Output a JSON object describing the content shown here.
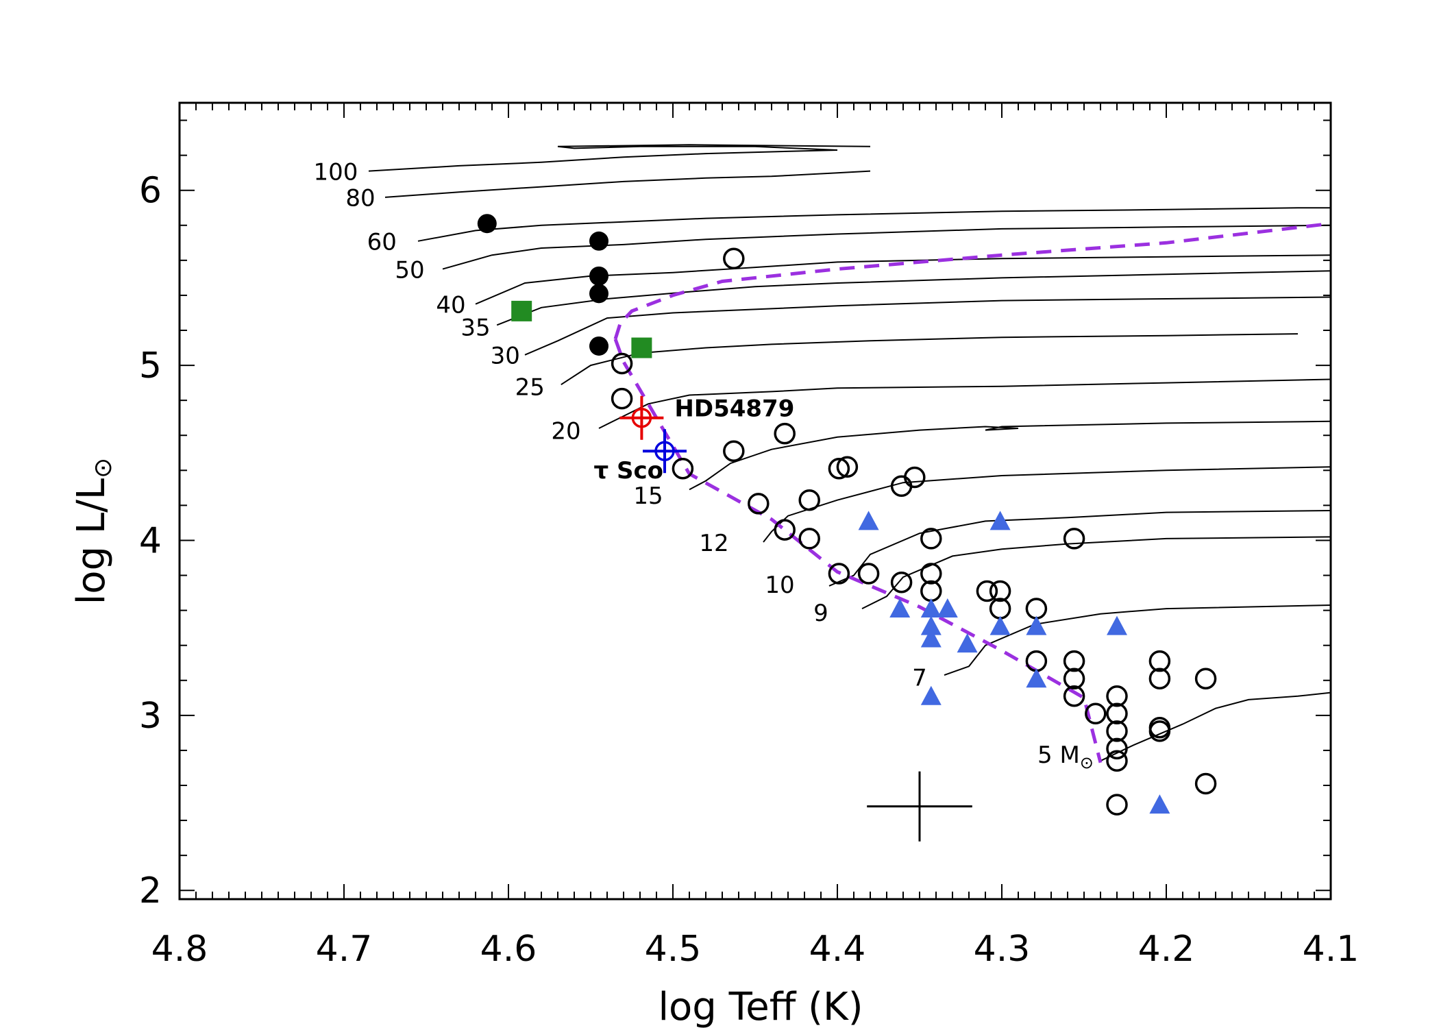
{
  "chart_data": {
    "type": "scatter",
    "title": "",
    "xlabel": "log Teff (K)",
    "ylabel_parts": {
      "main": "log L/L",
      "sub": "⊙"
    },
    "xlim": [
      4.8,
      4.1
    ],
    "ylim": [
      1.95,
      6.5
    ],
    "x_ticks": [
      {
        "v": 4.8,
        "label": "4.8"
      },
      {
        "v": 4.7,
        "label": "4.7"
      },
      {
        "v": 4.6,
        "label": "4.6"
      },
      {
        "v": 4.5,
        "label": "4.5"
      },
      {
        "v": 4.4,
        "label": "4.4"
      },
      {
        "v": 4.3,
        "label": "4.3"
      },
      {
        "v": 4.2,
        "label": "4.2"
      },
      {
        "v": 4.1,
        "label": "4.1"
      }
    ],
    "y_ticks": [
      {
        "v": 2,
        "label": "2"
      },
      {
        "v": 3,
        "label": "3"
      },
      {
        "v": 4,
        "label": "4"
      },
      {
        "v": 5,
        "label": "5"
      },
      {
        "v": 6,
        "label": "6"
      }
    ],
    "tracks": [
      {
        "mass": "100",
        "label_pos": [
          4.705,
          6.06
        ],
        "points": [
          [
            4.685,
            6.11
          ],
          [
            4.63,
            6.14
          ],
          [
            4.58,
            6.16
          ],
          [
            4.53,
            6.19
          ],
          [
            4.48,
            6.21
          ],
          [
            4.44,
            6.22
          ],
          [
            4.4,
            6.23
          ],
          [
            4.45,
            6.25
          ],
          [
            4.52,
            6.25
          ],
          [
            4.56,
            6.24
          ],
          [
            4.57,
            6.25
          ],
          [
            4.49,
            6.26
          ],
          [
            4.38,
            6.25
          ]
        ]
      },
      {
        "mass": "80",
        "label_pos": [
          4.69,
          5.91
        ],
        "points": [
          [
            4.675,
            5.96
          ],
          [
            4.63,
            5.99
          ],
          [
            4.58,
            6.02
          ],
          [
            4.53,
            6.05
          ],
          [
            4.48,
            6.07
          ],
          [
            4.44,
            6.08
          ],
          [
            4.4,
            6.1
          ],
          [
            4.38,
            6.11
          ]
        ]
      },
      {
        "mass": "60",
        "label_pos": [
          4.677,
          5.66
        ],
        "points": [
          [
            4.655,
            5.71
          ],
          [
            4.62,
            5.77
          ],
          [
            4.58,
            5.8
          ],
          [
            4.53,
            5.82
          ],
          [
            4.48,
            5.84
          ],
          [
            4.4,
            5.86
          ],
          [
            4.3,
            5.88
          ],
          [
            4.2,
            5.89
          ],
          [
            4.12,
            5.9
          ],
          [
            4.1,
            5.9
          ]
        ]
      },
      {
        "mass": "50",
        "label_pos": [
          4.66,
          5.5
        ],
        "points": [
          [
            4.64,
            5.55
          ],
          [
            4.61,
            5.63
          ],
          [
            4.58,
            5.67
          ],
          [
            4.53,
            5.69
          ],
          [
            4.48,
            5.72
          ],
          [
            4.4,
            5.75
          ],
          [
            4.3,
            5.78
          ],
          [
            4.2,
            5.79
          ],
          [
            4.1,
            5.8
          ]
        ]
      },
      {
        "mass": "40",
        "label_pos": [
          4.635,
          5.3
        ],
        "points": [
          [
            4.62,
            5.35
          ],
          [
            4.59,
            5.47
          ],
          [
            4.55,
            5.51
          ],
          [
            4.5,
            5.53
          ],
          [
            4.45,
            5.56
          ],
          [
            4.4,
            5.59
          ],
          [
            4.3,
            5.61
          ],
          [
            4.2,
            5.62
          ],
          [
            4.1,
            5.63
          ]
        ]
      },
      {
        "mass": "35",
        "label_pos": [
          4.62,
          5.17
        ],
        "points": [
          [
            4.607,
            5.23
          ],
          [
            4.58,
            5.33
          ],
          [
            4.54,
            5.38
          ],
          [
            4.49,
            5.42
          ],
          [
            4.45,
            5.45
          ],
          [
            4.4,
            5.47
          ],
          [
            4.3,
            5.5
          ],
          [
            4.2,
            5.52
          ],
          [
            4.1,
            5.54
          ]
        ]
      },
      {
        "mass": "30",
        "label_pos": [
          4.602,
          5.01
        ],
        "points": [
          [
            4.59,
            5.06
          ],
          [
            4.57,
            5.14
          ],
          [
            4.54,
            5.27
          ],
          [
            4.5,
            5.3
          ],
          [
            4.45,
            5.32
          ],
          [
            4.4,
            5.34
          ],
          [
            4.3,
            5.37
          ],
          [
            4.2,
            5.38
          ],
          [
            4.1,
            5.39
          ]
        ]
      },
      {
        "mass": "25",
        "label_pos": [
          4.587,
          4.83
        ],
        "points": [
          [
            4.568,
            4.89
          ],
          [
            4.55,
            5.0
          ],
          [
            4.52,
            5.07
          ],
          [
            4.48,
            5.1
          ],
          [
            4.44,
            5.12
          ],
          [
            4.38,
            5.14
          ],
          [
            4.3,
            5.16
          ],
          [
            4.2,
            5.17
          ],
          [
            4.12,
            5.18
          ]
        ]
      },
      {
        "mass": "20",
        "label_pos": [
          4.565,
          4.58
        ],
        "points": [
          [
            4.545,
            4.64
          ],
          [
            4.53,
            4.71
          ],
          [
            4.515,
            4.78
          ],
          [
            4.49,
            4.83
          ],
          [
            4.44,
            4.85
          ],
          [
            4.4,
            4.87
          ],
          [
            4.3,
            4.88
          ],
          [
            4.2,
            4.9
          ],
          [
            4.1,
            4.92
          ]
        ]
      },
      {
        "mass": "15",
        "label_pos": [
          4.515,
          4.21
        ],
        "points": [
          [
            4.49,
            4.29
          ],
          [
            4.48,
            4.34
          ],
          [
            4.465,
            4.44
          ],
          [
            4.44,
            4.52
          ],
          [
            4.4,
            4.59
          ],
          [
            4.35,
            4.63
          ],
          [
            4.31,
            4.65
          ],
          [
            4.29,
            4.64
          ],
          [
            4.31,
            4.63
          ],
          [
            4.3,
            4.65
          ],
          [
            4.2,
            4.67
          ],
          [
            4.1,
            4.68
          ]
        ]
      },
      {
        "mass": "12",
        "label_pos": [
          4.475,
          3.94
        ],
        "points": [
          [
            4.445,
            3.99
          ],
          [
            4.44,
            4.05
          ],
          [
            4.43,
            4.14
          ],
          [
            4.4,
            4.23
          ],
          [
            4.36,
            4.33
          ],
          [
            4.3,
            4.37
          ],
          [
            4.2,
            4.4
          ],
          [
            4.1,
            4.42
          ]
        ]
      },
      {
        "mass": "10",
        "label_pos": [
          4.435,
          3.7
        ],
        "points": [
          [
            4.405,
            3.74
          ],
          [
            4.39,
            3.8
          ],
          [
            4.38,
            3.92
          ],
          [
            4.35,
            4.04
          ],
          [
            4.31,
            4.11
          ],
          [
            4.26,
            4.13
          ],
          [
            4.2,
            4.16
          ],
          [
            4.1,
            4.17
          ]
        ]
      },
      {
        "mass": "9",
        "label_pos": [
          4.41,
          3.54
        ],
        "points": [
          [
            4.385,
            3.61
          ],
          [
            4.37,
            3.68
          ],
          [
            4.36,
            3.79
          ],
          [
            4.33,
            3.91
          ],
          [
            4.3,
            3.95
          ],
          [
            4.26,
            3.98
          ],
          [
            4.2,
            4.01
          ],
          [
            4.1,
            4.02
          ]
        ]
      },
      {
        "mass": "7",
        "label_pos": [
          4.35,
          3.17
        ],
        "points": [
          [
            4.335,
            3.23
          ],
          [
            4.32,
            3.28
          ],
          [
            4.31,
            3.4
          ],
          [
            4.28,
            3.52
          ],
          [
            4.24,
            3.58
          ],
          [
            4.2,
            3.61
          ],
          [
            4.1,
            3.63
          ]
        ]
      },
      {
        "mass": "5",
        "label_pos": [
          4.27,
          2.73
        ],
        "points": [
          [
            4.24,
            2.74
          ],
          [
            4.22,
            2.83
          ],
          [
            4.19,
            2.95
          ],
          [
            4.17,
            3.04
          ],
          [
            4.15,
            3.09
          ],
          [
            4.12,
            3.11
          ],
          [
            4.1,
            3.13
          ]
        ]
      }
    ],
    "track_label_suffix": "M",
    "track_label_suffix_sub": "⊙",
    "zams_line": [
      [
        4.535,
        5.15
      ],
      [
        4.532,
        5.24
      ],
      [
        4.525,
        5.31
      ],
      [
        4.5,
        5.4
      ],
      [
        4.47,
        5.48
      ],
      [
        4.4,
        5.55
      ],
      [
        4.3,
        5.63
      ],
      [
        4.2,
        5.7
      ],
      [
        4.1,
        5.81
      ]
    ],
    "tams_line": [
      [
        4.535,
        5.15
      ],
      [
        4.53,
        5.02
      ],
      [
        4.49,
        4.38
      ],
      [
        4.44,
        4.12
      ],
      [
        4.4,
        3.82
      ],
      [
        4.35,
        3.62
      ],
      [
        4.3,
        3.37
      ],
      [
        4.25,
        3.1
      ],
      [
        4.24,
        2.73
      ]
    ],
    "filled_circles": [
      [
        4.613,
        5.81
      ],
      [
        4.545,
        5.71
      ],
      [
        4.545,
        5.51
      ],
      [
        4.545,
        5.41
      ],
      [
        4.545,
        5.11
      ]
    ],
    "squares": [
      [
        4.592,
        5.31
      ],
      [
        4.519,
        5.1
      ]
    ],
    "open_circles": [
      [
        4.463,
        5.61
      ],
      [
        4.531,
        5.01
      ],
      [
        4.531,
        4.81
      ],
      [
        4.494,
        4.41
      ],
      [
        4.463,
        4.51
      ],
      [
        4.432,
        4.61
      ],
      [
        4.399,
        4.41
      ],
      [
        4.394,
        4.42
      ],
      [
        4.361,
        4.31
      ],
      [
        4.353,
        4.36
      ],
      [
        4.448,
        4.21
      ],
      [
        4.417,
        4.23
      ],
      [
        4.432,
        4.06
      ],
      [
        4.417,
        4.01
      ],
      [
        4.343,
        4.01
      ],
      [
        4.256,
        4.01
      ],
      [
        4.399,
        3.81
      ],
      [
        4.381,
        3.81
      ],
      [
        4.361,
        3.76
      ],
      [
        4.343,
        3.81
      ],
      [
        4.343,
        3.71
      ],
      [
        4.309,
        3.71
      ],
      [
        4.301,
        3.71
      ],
      [
        4.301,
        3.61
      ],
      [
        4.279,
        3.61
      ],
      [
        4.279,
        3.31
      ],
      [
        4.256,
        3.31
      ],
      [
        4.256,
        3.21
      ],
      [
        4.256,
        3.11
      ],
      [
        4.243,
        3.01
      ],
      [
        4.23,
        3.11
      ],
      [
        4.23,
        3.01
      ],
      [
        4.23,
        2.91
      ],
      [
        4.23,
        2.81
      ],
      [
        4.23,
        2.74
      ],
      [
        4.23,
        2.49
      ],
      [
        4.204,
        3.31
      ],
      [
        4.204,
        3.21
      ],
      [
        4.204,
        2.91
      ],
      [
        4.204,
        2.93
      ],
      [
        4.176,
        3.21
      ],
      [
        4.176,
        2.61
      ]
    ],
    "triangles": [
      [
        4.381,
        4.11
      ],
      [
        4.301,
        4.11
      ],
      [
        4.362,
        3.61
      ],
      [
        4.343,
        3.61
      ],
      [
        4.333,
        3.61
      ],
      [
        4.343,
        3.51
      ],
      [
        4.343,
        3.44
      ],
      [
        4.321,
        3.41
      ],
      [
        4.301,
        3.51
      ],
      [
        4.279,
        3.51
      ],
      [
        4.23,
        3.51
      ],
      [
        4.279,
        3.21
      ],
      [
        4.343,
        3.11
      ],
      [
        4.204,
        2.49
      ]
    ],
    "stars": [
      {
        "name": "HD54879",
        "x": 4.519,
        "y": 4.7,
        "color": "#e60000"
      },
      {
        "name": "τ  Sco",
        "x": 4.505,
        "y": 4.51,
        "color": "#0000dd"
      }
    ],
    "error_bar": {
      "x": 4.35,
      "y": 2.48,
      "dx": 0.032,
      "dy": 0.2
    },
    "colors": {
      "zams_tams": "#9b30e0",
      "triangle": "#4169e1",
      "square": "#228b22",
      "axis": "#000000"
    }
  }
}
